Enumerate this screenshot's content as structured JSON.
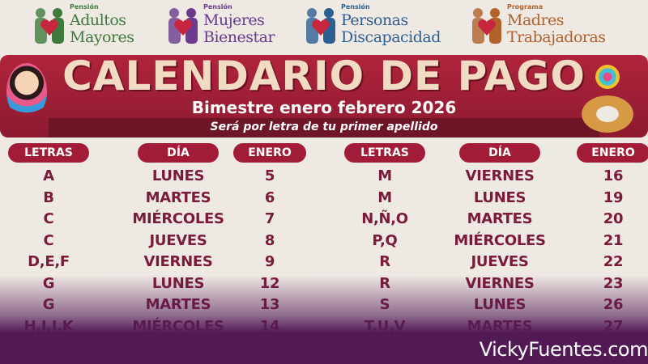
{
  "logos": [
    {
      "small": "Pensión",
      "line1": "Adultos",
      "line2": "Mayores",
      "color": "#3f7a3d",
      "name": "adultos-mayores"
    },
    {
      "small": "Pensión",
      "line1": "Mujeres",
      "line2": "Bienestar",
      "color": "#6a3b8e",
      "name": "mujeres-bienestar"
    },
    {
      "small": "Pensión",
      "line1": "Personas",
      "line2": "Discapacidad",
      "color": "#2d5f92",
      "name": "personas-discapacidad"
    },
    {
      "small": "Programa",
      "line1": "Madres",
      "line2": "Trabajadoras",
      "color": "#b0622a",
      "name": "madres-trabajadoras"
    }
  ],
  "banner": {
    "title": "CALENDARIO DE PAGO",
    "subtitle": "Bimestre enero febrero 2026",
    "note": "Será por letra de tu primer apellido"
  },
  "headers": [
    "LETRAS",
    "DÍA",
    "ENERO",
    "LETRAS",
    "DÍA",
    "ENERO"
  ],
  "left_rows": [
    [
      "A",
      "LUNES",
      "5"
    ],
    [
      "B",
      "MARTES",
      "6"
    ],
    [
      "C",
      "MIÉRCOLES",
      "7"
    ],
    [
      "C",
      "JUEVES",
      "8"
    ],
    [
      "D,E,F",
      "VIERNES",
      "9"
    ],
    [
      "G",
      "LUNES",
      "12"
    ],
    [
      "G",
      "MARTES",
      "13"
    ],
    [
      "H,I,J,K",
      "MIÉRCOLES",
      "14"
    ]
  ],
  "right_rows": [
    [
      "M",
      "VIERNES",
      "16"
    ],
    [
      "M",
      "LUNES",
      "19"
    ],
    [
      "N,Ñ,O",
      "MARTES",
      "20"
    ],
    [
      "P,Q",
      "MIÉRCOLES",
      "21"
    ],
    [
      "R",
      "JUEVES",
      "22"
    ],
    [
      "R",
      "VIERNES",
      "23"
    ],
    [
      "S",
      "LUNES",
      "26"
    ],
    [
      "T,U,V",
      "MARTES",
      "27"
    ]
  ],
  "watermark": "VickyFuentes.com",
  "colors": {
    "banner": "#a21c37",
    "text": "#7a1c38",
    "footer": "#521a55"
  }
}
